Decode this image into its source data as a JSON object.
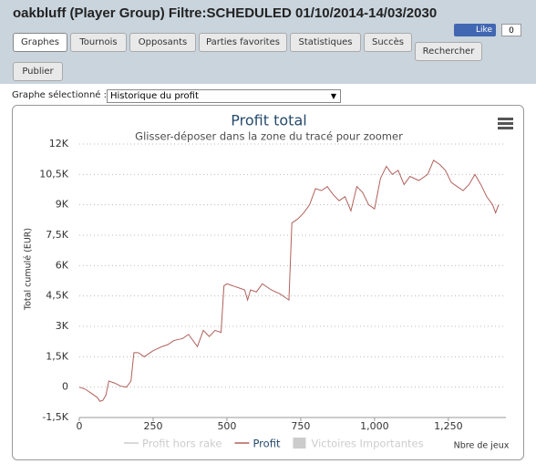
{
  "header": {
    "title": "oakbluff (Player Group) Filtre:SCHEDULED 01/10/2014-14/03/2030",
    "like": "Like",
    "like_count": "0"
  },
  "tabs": [
    "Graphes",
    "Tournois",
    "Opposants",
    "Parties favorites",
    "Statistiques",
    "Succès",
    "Rechercher",
    "Publier"
  ],
  "selector": {
    "label": "Graphe sélectionné :",
    "value": "Historique du profit"
  },
  "chart_data": {
    "type": "line",
    "title": "Profit total",
    "subtitle": "Glisser-déposer dans la zone du tracé pour zoomer",
    "y_label": "Total cumulé (EUR)",
    "x_label": "Nbre de jeux",
    "legend_items": [
      {
        "name": "Profit hors rake",
        "color": "#cccccc"
      },
      {
        "name": "Profit",
        "color": "#b0615c"
      },
      {
        "name": "Victoires Importantes",
        "color": "#cccccc"
      }
    ],
    "xlim": [
      0,
      1445
    ],
    "ylim": [
      -1500,
      12000
    ],
    "xticks": [
      0,
      250,
      500,
      750,
      {
        "value": 1000,
        "label": "1,000"
      },
      {
        "value": 1250,
        "label": "1,250"
      }
    ],
    "yticks": [
      {
        "value": -1500,
        "label": "-1,5K"
      },
      0,
      {
        "value": 1500,
        "label": "1,5K"
      },
      {
        "value": 3000,
        "label": "3K"
      },
      {
        "value": 4500,
        "label": "4,5K"
      },
      {
        "value": 6000,
        "label": "6K"
      },
      {
        "value": 7500,
        "label": "7,5K"
      },
      {
        "value": 9000,
        "label": "9K"
      },
      {
        "value": 10500,
        "label": "10,5K"
      },
      {
        "value": 12000,
        "label": "12K"
      }
    ],
    "grid": true,
    "x": [
      0,
      20,
      40,
      60,
      70,
      80,
      90,
      100,
      120,
      140,
      160,
      175,
      185,
      200,
      220,
      250,
      280,
      300,
      320,
      350,
      370,
      400,
      420,
      440,
      460,
      480,
      490,
      500,
      520,
      540,
      560,
      570,
      580,
      600,
      620,
      650,
      680,
      700,
      710,
      720,
      740,
      760,
      780,
      800,
      820,
      840,
      860,
      880,
      900,
      920,
      940,
      960,
      980,
      1000,
      1020,
      1040,
      1060,
      1080,
      1100,
      1120,
      1150,
      1180,
      1200,
      1220,
      1240,
      1260,
      1280,
      1300,
      1320,
      1340,
      1360,
      1380,
      1400,
      1410,
      1420
    ],
    "series": [
      {
        "name": "Profit",
        "color": "#b0615c",
        "values": [
          0,
          -100,
          -300,
          -500,
          -700,
          -650,
          -400,
          300,
          200,
          50,
          0,
          300,
          1700,
          1700,
          1500,
          1800,
          2000,
          2100,
          2300,
          2400,
          2600,
          2000,
          2800,
          2500,
          2800,
          2700,
          5000,
          5100,
          5000,
          4900,
          4800,
          4300,
          4800,
          4700,
          5100,
          4800,
          4600,
          4400,
          4300,
          8100,
          8300,
          8600,
          9000,
          9800,
          9700,
          9900,
          9500,
          9200,
          9400,
          8700,
          9900,
          9600,
          9000,
          8800,
          10300,
          10900,
          10500,
          10700,
          10000,
          10400,
          10200,
          10500,
          11200,
          11000,
          10700,
          10100,
          9900,
          9700,
          10000,
          10500,
          10000,
          9400,
          9000,
          8600,
          9000
        ]
      }
    ]
  }
}
